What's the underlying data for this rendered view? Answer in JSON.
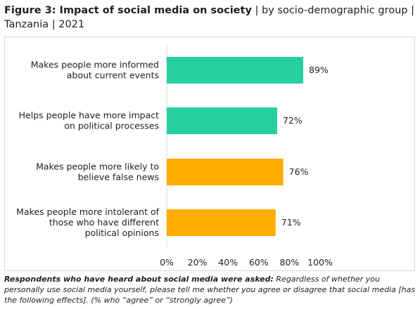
{
  "title": {
    "bold": "Figure 3: Impact of social media on society",
    "rest": " | by socio-demographic group | Tanzania | 2021"
  },
  "footnote": {
    "bold": "Respondents who have heard about social media were asked:",
    "rest": " Regardless of whether you personally use social media yourself, please tell me whether you agree or disagree that social media [has the following effects]. (% who “agree” or “strongly agree”)"
  },
  "chart_data": {
    "type": "bar",
    "orientation": "horizontal",
    "categories": [
      [
        "Makes people more informed",
        "about current events"
      ],
      [
        "Helps people have more impact",
        "on political processes"
      ],
      [
        "Makes people more likely to",
        "believe false news"
      ],
      [
        "Makes people more intolerant of",
        "those who have different",
        "political opinions"
      ]
    ],
    "values": [
      89,
      72,
      76,
      71
    ],
    "value_labels": [
      "89%",
      "72%",
      "76%",
      "71%"
    ],
    "colors": [
      "#26cfa0",
      "#26cfa0",
      "#ffab00",
      "#ffab00"
    ],
    "xlim": [
      0,
      100
    ],
    "xticks": [
      "0%",
      "20%",
      "40%",
      "60%",
      "80%",
      "100%"
    ],
    "grid": false,
    "legend": "none"
  }
}
